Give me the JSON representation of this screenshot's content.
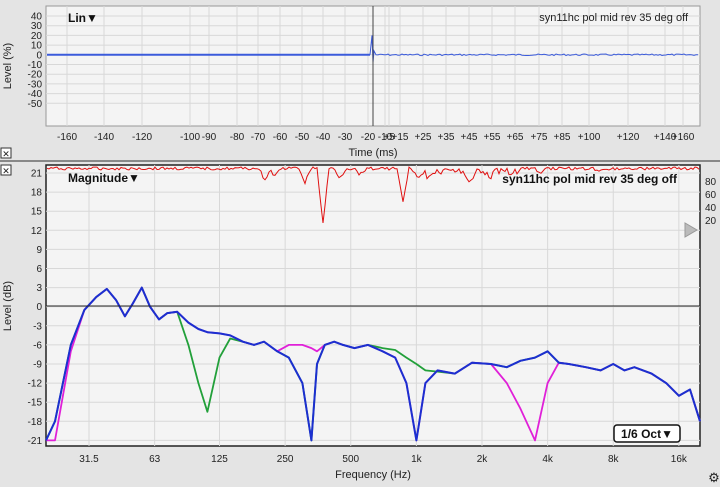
{
  "time_panel": {
    "mode_label": "Lin▼",
    "trace_name": "syn11hc pol mid rev 35 deg off",
    "y_axis_label": "Level (%)",
    "x_axis_label": "Time (ms)",
    "y_ticks": [
      "40",
      "30",
      "20",
      "10",
      "0",
      "-10",
      "-20",
      "-30",
      "-40",
      "-50"
    ],
    "x_ticks": [
      "-160",
      "-140",
      "-120",
      "-100",
      "-90",
      "-80",
      "-70",
      "-60",
      "-50",
      "-40",
      "-30",
      "-20",
      "-10",
      "+5",
      "+15",
      "+25",
      "+35",
      "+45",
      "+55",
      "+65",
      "+75",
      "+85",
      "+100",
      "+120",
      "+140",
      "+160"
    ],
    "close_icon_label": "✕"
  },
  "freq_panel": {
    "mode_label": "Magnitude▼",
    "trace_name": "syn11hc pol mid rev 35 deg off",
    "y_axis_label": "Level (dB)",
    "x_axis_label": "Frequency (Hz)",
    "y_ticks": [
      "21",
      "18",
      "15",
      "12",
      "9",
      "6",
      "3",
      "0",
      "-3",
      "-6",
      "-9",
      "-12",
      "-15",
      "-18",
      "-21"
    ],
    "x_ticks": [
      "31.5",
      "63",
      "125",
      "250",
      "500",
      "1k",
      "2k",
      "4k",
      "8k",
      "16k"
    ],
    "right_ticks": [
      "80",
      "60",
      "40",
      "20"
    ],
    "smoothing_label": "1/6 Oct▼",
    "close_icon_label": "✕",
    "settings_icon_label": "⚙"
  },
  "colors": {
    "panel_bg": "#f4f4f4",
    "grid": "#d8d8d8",
    "impulse": "#3b5bdb",
    "trace_blue": "#1c2fd0",
    "trace_green": "#22a03a",
    "trace_magenta": "#e020d8",
    "trace_teal": "#1fa0a8",
    "coherence_red": "#e01010"
  },
  "chart_data": [
    {
      "type": "line",
      "title": "",
      "xlabel": "Time (ms)",
      "ylabel": "Level (%)",
      "ylim": [
        -50,
        45
      ],
      "grid": true,
      "series": [
        {
          "name": "syn11hc pol mid rev 35 deg off",
          "x": [
            -170,
            -1,
            0,
            0.5,
            1,
            2,
            170
          ],
          "y": [
            0,
            0,
            20,
            -8,
            3,
            0,
            0
          ]
        }
      ]
    },
    {
      "type": "line",
      "title": "",
      "xlabel": "Frequency (Hz)",
      "ylabel": "Level (dB)",
      "ylim": [
        -22,
        22
      ],
      "x_scale": "log",
      "grid": true,
      "series": [
        {
          "x": [
            20,
            22,
            26,
            30,
            34,
            38,
            42,
            46,
            50,
            55,
            60,
            66,
            72,
            80,
            90,
            100,
            110,
            125,
            140,
            160,
            180,
            200,
            230,
            260,
            300,
            330,
            350,
            380,
            420,
            460,
            520,
            600,
            700,
            800,
            900,
            1000,
            1100,
            1250,
            1500,
            1800,
            2200,
            2600,
            3000,
            3500,
            4000,
            4500,
            5000,
            6000,
            7000,
            8000,
            9000,
            10000,
            12000,
            14000,
            16000,
            18000,
            20000
          ],
          "y": [
            -21,
            -18,
            -6,
            -0.5,
            1.5,
            2.8,
            1,
            -1.5,
            0.5,
            3,
            0,
            -2,
            -1,
            -0.8,
            -2.5,
            -3.5,
            -4,
            -4.2,
            -4.5,
            -5.5,
            -6,
            -5.5,
            -7,
            -8,
            -12,
            -21,
            -9,
            -6,
            -5.5,
            -6,
            -6.5,
            -6,
            -7,
            -8,
            -12,
            -21,
            -12,
            -10,
            -10.5,
            -8.8,
            -9,
            -9.5,
            -8.5,
            -8,
            -7,
            -8.8,
            -9,
            -9.5,
            -10,
            -9,
            -10,
            -9.5,
            -10.5,
            -12,
            -14,
            -13,
            -18
          ]
        },
        {
          "x": [
            20,
            22,
            26,
            30,
            34,
            38,
            42,
            46,
            50,
            55,
            60,
            66,
            72,
            80,
            90,
            100,
            110,
            125,
            140,
            160,
            180,
            200,
            230,
            260,
            300,
            330,
            350,
            380,
            420,
            460,
            520,
            600,
            700,
            800,
            900,
            1000,
            1100,
            1250,
            1500,
            1800,
            2200,
            2600,
            3000,
            3500,
            4000,
            4500,
            5000,
            6000,
            7000,
            8000,
            9000,
            10000,
            12000,
            14000,
            16000,
            18000,
            20000
          ],
          "y": [
            -21,
            -18,
            -6,
            -0.5,
            1.5,
            2.8,
            1,
            -1.5,
            0.5,
            3,
            0,
            -2,
            -1,
            -0.8,
            -6,
            -12,
            -16.5,
            -8,
            -5,
            -5.5,
            -6,
            -5.5,
            -7,
            -8,
            -12,
            -21,
            -9,
            -6,
            -5.5,
            -6,
            -6.5,
            -6,
            -6.5,
            -6.8,
            -8,
            -9,
            -10,
            -10.2,
            -10.5,
            -8.8,
            -9,
            -9.5,
            -8.5,
            -8,
            -7,
            -8.8,
            -9,
            -9.5,
            -10,
            -9,
            -10,
            -9.5,
            -10.5,
            -12,
            -14,
            -13,
            -18
          ]
        },
        {
          "x": [
            20,
            22,
            26,
            30,
            34,
            38,
            42,
            46,
            50,
            55,
            60,
            66,
            72,
            80,
            90,
            100,
            110,
            125,
            140,
            160,
            180,
            200,
            230,
            260,
            300,
            330,
            350,
            380,
            420,
            460,
            520,
            600,
            700,
            800,
            900,
            1000,
            1100,
            1250,
            1500,
            1800,
            2200,
            2600,
            3000,
            3500,
            4000,
            4500,
            5000,
            6000,
            7000,
            8000,
            9000,
            10000,
            12000,
            14000,
            16000,
            18000,
            20000
          ],
          "y": [
            -21,
            -21,
            -7,
            -0.5,
            1.5,
            2.8,
            1,
            -1.5,
            0.5,
            3,
            0,
            -2,
            -1,
            -0.8,
            -2.5,
            -3.5,
            -4,
            -4.2,
            -4.5,
            -5.5,
            -6,
            -5.5,
            -7,
            -6,
            -6,
            -6.5,
            -7,
            -6,
            -5.5,
            -6,
            -6.5,
            -6,
            -7,
            -8,
            -12,
            -21,
            -12,
            -10,
            -10.5,
            -8.8,
            -9,
            -12,
            -16,
            -21,
            -12,
            -8.8,
            -9,
            -9.5,
            -10,
            -9,
            -10,
            -9.5,
            -10.5,
            -12,
            -14,
            -13,
            -18
          ]
        }
      ]
    }
  ]
}
